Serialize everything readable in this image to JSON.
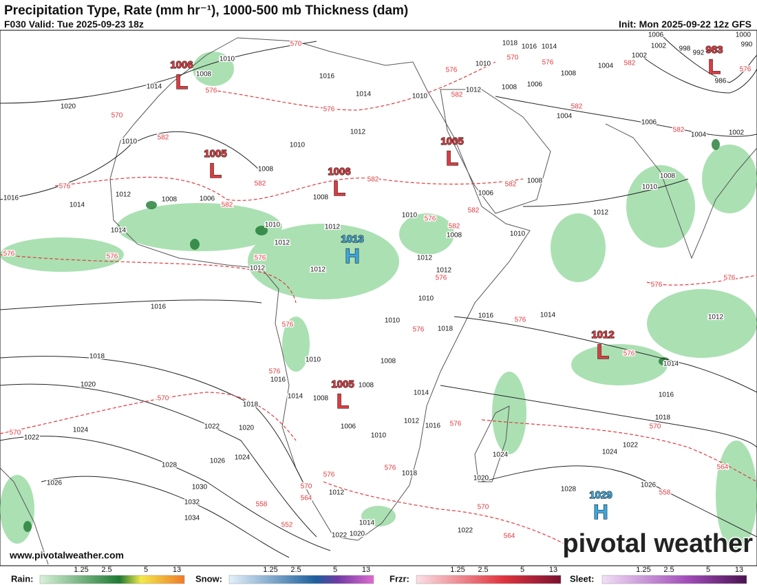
{
  "header": {
    "title": "Precipitation Type, Rate (mm hr⁻¹), 1000-500 mb Thickness (dam)",
    "valid": "F030 Valid: Tue 2025-09-23 18z",
    "init": "Init: Mon 2025-09-22 12z GFS"
  },
  "map": {
    "centers": [
      {
        "type": "L",
        "value": 1006
      },
      {
        "type": "L",
        "value": 1005
      },
      {
        "type": "L",
        "value": 1006
      },
      {
        "type": "L",
        "value": 1005
      },
      {
        "type": "L",
        "value": 983
      },
      {
        "type": "H",
        "value": 1013
      },
      {
        "type": "L",
        "value": 1012
      },
      {
        "type": "L",
        "value": 1005
      },
      {
        "type": "H",
        "value": 1029
      }
    ],
    "isobar_labels": [
      1020,
      1014,
      1008,
      1010,
      1010,
      1016,
      1014,
      1012,
      1008,
      1006,
      1014,
      1008,
      1010,
      1016,
      1014,
      1012,
      1010,
      1012,
      1008,
      1010,
      1016,
      1014,
      1008,
      1006,
      1004,
      1004,
      1002,
      1006,
      1004,
      1002,
      1008,
      1010,
      1012,
      1008,
      1006,
      1010,
      1010,
      1008,
      1012,
      1012,
      1010,
      1012,
      1012,
      1010,
      1012,
      1012,
      1008,
      1016,
      1016,
      1014,
      1012,
      1014,
      1016,
      1018,
      1022,
      1024,
      1026,
      1028,
      1018,
      1020,
      1018,
      1020,
      1022,
      1024,
      1024,
      1026,
      1028,
      1030,
      1032,
      1034,
      1022,
      1026,
      1010,
      1016,
      1014,
      1008,
      1008,
      1008,
      1010,
      1018,
      1014,
      1012,
      1016,
      1010,
      1006,
      1024,
      1020,
      1018,
      1012,
      1014,
      1020,
      1022,
      1022,
      1006,
      1002,
      998,
      992,
      990,
      1000,
      1018,
      986
    ],
    "thickness_labels": [
      570,
      576,
      570,
      576,
      582,
      576,
      576,
      570,
      576,
      582,
      582,
      582,
      582,
      576,
      582,
      582,
      582,
      582,
      576,
      582,
      582,
      576,
      576,
      576,
      576,
      576,
      576,
      576,
      576,
      576,
      576,
      576,
      570,
      570,
      576,
      570,
      564,
      558,
      576,
      576,
      570,
      564,
      558,
      552,
      570,
      564
    ]
  },
  "watermark": "pivotal weather",
  "website": "www.pivotalweather.com",
  "legend": [
    {
      "label": "Rain:",
      "ticks": [
        1.25,
        2.5,
        5,
        13
      ]
    },
    {
      "label": "Snow:",
      "ticks": [
        1.25,
        2.5,
        5,
        13
      ]
    },
    {
      "label": "Frzr:",
      "ticks": [
        1.25,
        2.5,
        5,
        13
      ]
    },
    {
      "label": "Sleet:",
      "ticks": [
        1.25,
        2.5,
        5,
        13
      ]
    }
  ]
}
